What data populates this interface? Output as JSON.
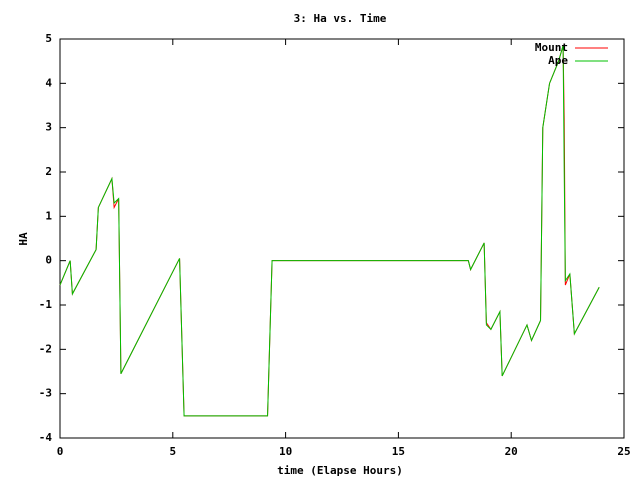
{
  "chart_data": {
    "type": "line",
    "title": "3: Ha vs. Time",
    "xlabel": "time (Elapse Hours)",
    "ylabel": "HA",
    "x": [
      0,
      0.45,
      0.55,
      1.6,
      1.7,
      2.3,
      2.4,
      2.6,
      2.7,
      5.3,
      5.5,
      9.2,
      9.4,
      18.1,
      18.2,
      18.8,
      18.9,
      19.1,
      19.5,
      19.6,
      20.7,
      20.9,
      21.3,
      21.4,
      21.7,
      22.1,
      22.3,
      22.35,
      22.4,
      22.6,
      22.8,
      23.9
    ],
    "series": [
      {
        "name": "Mount",
        "color": "#ff0000",
        "values": [
          -0.55,
          0.0,
          -0.75,
          0.25,
          1.2,
          1.85,
          1.2,
          1.4,
          -2.55,
          0.05,
          -3.5,
          -3.5,
          0.0,
          0.0,
          -0.2,
          0.4,
          -1.4,
          -1.55,
          -1.15,
          -2.6,
          -1.45,
          -1.8,
          -1.35,
          3.0,
          4.0,
          4.5,
          4.85,
          3.2,
          -0.55,
          -0.3,
          -1.65,
          -0.6
        ]
      },
      {
        "name": "Ape",
        "color": "#00c000",
        "values": [
          -0.55,
          0.0,
          -0.75,
          0.25,
          1.2,
          1.85,
          1.3,
          1.4,
          -2.55,
          0.05,
          -3.5,
          -3.5,
          0.0,
          0.0,
          -0.2,
          0.4,
          -1.45,
          -1.55,
          -1.15,
          -2.6,
          -1.45,
          -1.8,
          -1.35,
          3.0,
          4.0,
          4.5,
          4.85,
          2.0,
          -0.45,
          -0.3,
          -1.65,
          -0.6
        ]
      }
    ],
    "xlim": [
      0,
      25
    ],
    "xticks": [
      0,
      5,
      10,
      15,
      20,
      25
    ],
    "ylim": [
      -4,
      5
    ],
    "yticks": [
      -4,
      -3,
      -2,
      -1,
      0,
      1,
      2,
      3,
      4,
      5
    ],
    "legend": "upper right"
  }
}
